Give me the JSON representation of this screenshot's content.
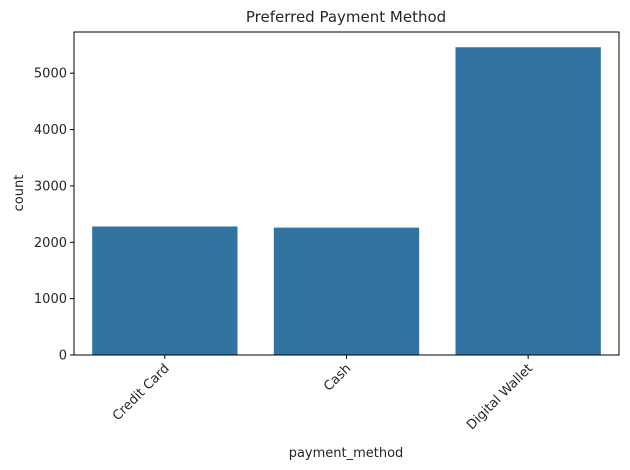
{
  "chart_data": {
    "type": "bar",
    "title": "Preferred Payment Method",
    "xlabel": "payment_method",
    "ylabel": "count",
    "categories": [
      "Credit Card",
      "Cash",
      "Digital Wallet"
    ],
    "values": [
      2280,
      2260,
      5460
    ],
    "ylim": [
      0,
      5730
    ],
    "yticks": [
      0,
      1000,
      2000,
      3000,
      4000,
      5000
    ],
    "ytick_labels": [
      "0",
      "1000",
      "2000",
      "3000",
      "4000",
      "5000"
    ],
    "bar_color": "#3274a1",
    "grid": false,
    "legend": "none"
  }
}
